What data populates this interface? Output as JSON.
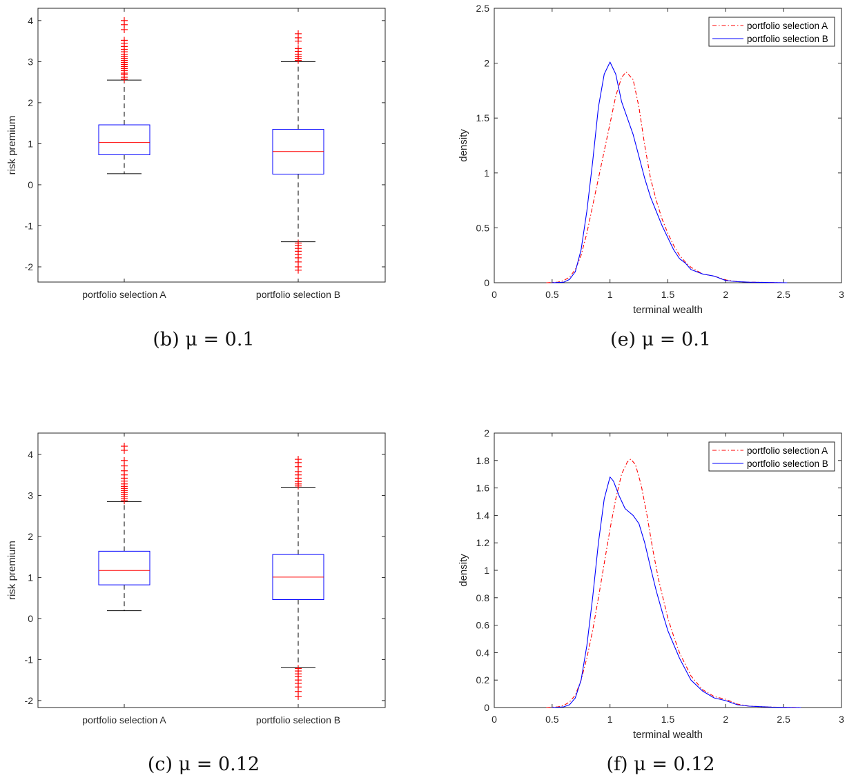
{
  "chart_data": [
    {
      "id": "b",
      "type": "box",
      "caption": "(b) μ = 0.1",
      "ylabel": "risk premium",
      "xlabel": "",
      "categories": [
        "portfolio selection A",
        "portfolio selection B"
      ],
      "ylim": [
        -2.37,
        4.3
      ],
      "yticks": [
        -2,
        -1,
        0,
        1,
        2,
        3,
        4
      ],
      "grid": false,
      "boxes": [
        {
          "q1": 0.73,
          "median": 1.03,
          "q3": 1.46,
          "whisker_low": 0.27,
          "whisker_high": 2.55,
          "outliers": [
            2.57,
            2.62,
            2.68,
            2.72,
            2.78,
            2.83,
            2.88,
            2.93,
            2.98,
            3.03,
            3.08,
            3.13,
            3.18,
            3.24,
            3.3,
            3.37,
            3.45,
            3.52,
            3.78,
            3.9,
            4.0
          ]
        },
        {
          "q1": 0.26,
          "median": 0.81,
          "q3": 1.35,
          "whisker_low": -1.39,
          "whisker_high": 3.0,
          "outliers": [
            3.03,
            3.08,
            3.13,
            3.18,
            3.25,
            3.32,
            3.5,
            3.58,
            3.68,
            -1.42,
            -1.48,
            -1.55,
            -1.62,
            -1.7,
            -1.78,
            -1.88,
            -2.0,
            -2.08
          ]
        }
      ],
      "colors": {
        "box": "#0000ff",
        "median": "#ff0000",
        "outlier": "#ff0000",
        "whisker": "#000000"
      }
    },
    {
      "id": "e",
      "type": "line",
      "caption": "(e) μ = 0.1",
      "xlabel": "terminal wealth",
      "ylabel": "density",
      "xlim": [
        0,
        3
      ],
      "ylim": [
        0,
        2.5
      ],
      "xticks": [
        0,
        0.5,
        1,
        1.5,
        2,
        2.5,
        3
      ],
      "yticks": [
        0,
        0.5,
        1,
        1.5,
        2,
        2.5
      ],
      "legend": "top-right",
      "grid": false,
      "series": [
        {
          "name": "portfolio selection A",
          "color": "#ff0000",
          "style": "dash-dot",
          "x": [
            0.45,
            0.55,
            0.6,
            0.65,
            0.7,
            0.75,
            0.8,
            0.85,
            0.9,
            0.95,
            1.0,
            1.05,
            1.1,
            1.14,
            1.2,
            1.25,
            1.3,
            1.35,
            1.4,
            1.45,
            1.5,
            1.55,
            1.6,
            1.65,
            1.7,
            1.8,
            1.9,
            2.0,
            2.1,
            2.2,
            2.5
          ],
          "y": [
            0,
            0.005,
            0.02,
            0.05,
            0.12,
            0.25,
            0.45,
            0.7,
            0.95,
            1.2,
            1.45,
            1.7,
            1.87,
            1.92,
            1.85,
            1.6,
            1.25,
            0.95,
            0.75,
            0.58,
            0.45,
            0.34,
            0.25,
            0.19,
            0.14,
            0.08,
            0.06,
            0.025,
            0.01,
            0.005,
            0
          ]
        },
        {
          "name": "portfolio selection B",
          "color": "#0000ff",
          "style": "solid",
          "x": [
            0.5,
            0.6,
            0.65,
            0.7,
            0.75,
            0.8,
            0.85,
            0.9,
            0.95,
            1.0,
            1.05,
            1.1,
            1.15,
            1.2,
            1.25,
            1.3,
            1.35,
            1.4,
            1.45,
            1.5,
            1.55,
            1.6,
            1.65,
            1.7,
            1.8,
            1.9,
            2.0,
            2.1,
            2.2,
            2.53
          ],
          "y": [
            0,
            0.005,
            0.03,
            0.1,
            0.3,
            0.65,
            1.1,
            1.6,
            1.9,
            2.01,
            1.9,
            1.65,
            1.5,
            1.35,
            1.15,
            0.95,
            0.78,
            0.65,
            0.52,
            0.41,
            0.3,
            0.22,
            0.18,
            0.12,
            0.08,
            0.06,
            0.02,
            0.01,
            0.005,
            0
          ]
        }
      ]
    },
    {
      "id": "c",
      "type": "box",
      "caption": "(c) μ = 0.12",
      "ylabel": "risk premium",
      "xlabel": "",
      "categories": [
        "portfolio selection A",
        "portfolio selection B"
      ],
      "ylim": [
        -2.17,
        4.52
      ],
      "yticks": [
        -2,
        -1,
        0,
        1,
        2,
        3,
        4
      ],
      "grid": false,
      "boxes": [
        {
          "q1": 0.82,
          "median": 1.17,
          "q3": 1.64,
          "whisker_low": 0.19,
          "whisker_high": 2.85,
          "outliers": [
            2.87,
            2.92,
            2.97,
            3.02,
            3.07,
            3.12,
            3.17,
            3.22,
            3.28,
            3.35,
            3.42,
            3.5,
            3.6,
            3.72,
            3.85,
            4.1,
            4.2
          ]
        },
        {
          "q1": 0.46,
          "median": 1.01,
          "q3": 1.56,
          "whisker_low": -1.19,
          "whisker_high": 3.2,
          "outliers": [
            3.23,
            3.28,
            3.34,
            3.42,
            3.5,
            3.58,
            3.7,
            3.8,
            3.88,
            -1.22,
            -1.28,
            -1.35,
            -1.42,
            -1.5,
            -1.58,
            -1.67,
            -1.78,
            -1.9
          ]
        }
      ],
      "colors": {
        "box": "#0000ff",
        "median": "#ff0000",
        "outlier": "#ff0000",
        "whisker": "#000000"
      }
    },
    {
      "id": "f",
      "type": "line",
      "caption": "(f) μ = 0.12",
      "xlabel": "terminal wealth",
      "ylabel": "density",
      "xlim": [
        0,
        3
      ],
      "ylim": [
        0,
        2
      ],
      "xticks": [
        0,
        0.5,
        1,
        1.5,
        2,
        2.5,
        3
      ],
      "yticks": [
        0,
        0.2,
        0.4,
        0.6,
        0.8,
        1,
        1.2,
        1.4,
        1.6,
        1.8,
        2
      ],
      "legend": "top-right",
      "grid": false,
      "series": [
        {
          "name": "portfolio selection A",
          "color": "#ff0000",
          "style": "dash-dot",
          "x": [
            0.45,
            0.55,
            0.6,
            0.65,
            0.7,
            0.75,
            0.8,
            0.85,
            0.9,
            0.95,
            1.0,
            1.05,
            1.1,
            1.15,
            1.18,
            1.22,
            1.27,
            1.32,
            1.37,
            1.42,
            1.5,
            1.55,
            1.6,
            1.7,
            1.8,
            1.9,
            2.0,
            2.1,
            2.2,
            2.4,
            2.65
          ],
          "y": [
            0,
            0.005,
            0.015,
            0.04,
            0.09,
            0.2,
            0.36,
            0.56,
            0.8,
            1.05,
            1.3,
            1.52,
            1.7,
            1.79,
            1.81,
            1.77,
            1.62,
            1.4,
            1.15,
            0.93,
            0.65,
            0.52,
            0.4,
            0.23,
            0.13,
            0.08,
            0.06,
            0.025,
            0.01,
            0.003,
            0
          ]
        },
        {
          "name": "portfolio selection B",
          "color": "#0000ff",
          "style": "solid",
          "x": [
            0.5,
            0.6,
            0.65,
            0.7,
            0.75,
            0.8,
            0.85,
            0.9,
            0.95,
            1.0,
            1.03,
            1.08,
            1.13,
            1.2,
            1.25,
            1.3,
            1.35,
            1.4,
            1.45,
            1.5,
            1.6,
            1.7,
            1.8,
            1.9,
            2.0,
            2.1,
            2.2,
            2.4,
            2.65
          ],
          "y": [
            0,
            0.005,
            0.02,
            0.07,
            0.2,
            0.45,
            0.8,
            1.2,
            1.52,
            1.68,
            1.65,
            1.54,
            1.45,
            1.4,
            1.34,
            1.2,
            1.02,
            0.85,
            0.7,
            0.56,
            0.36,
            0.2,
            0.12,
            0.07,
            0.05,
            0.02,
            0.01,
            0.003,
            0
          ]
        }
      ]
    }
  ]
}
